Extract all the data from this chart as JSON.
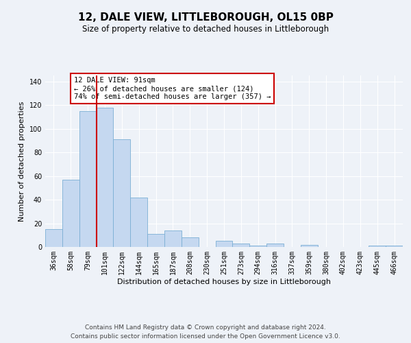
{
  "title": "12, DALE VIEW, LITTLEBOROUGH, OL15 0BP",
  "subtitle": "Size of property relative to detached houses in Littleborough",
  "xlabel": "Distribution of detached houses by size in Littleborough",
  "ylabel": "Number of detached properties",
  "categories": [
    "36sqm",
    "58sqm",
    "79sqm",
    "101sqm",
    "122sqm",
    "144sqm",
    "165sqm",
    "187sqm",
    "208sqm",
    "230sqm",
    "251sqm",
    "273sqm",
    "294sqm",
    "316sqm",
    "337sqm",
    "359sqm",
    "380sqm",
    "402sqm",
    "423sqm",
    "445sqm",
    "466sqm"
  ],
  "values": [
    15,
    57,
    115,
    118,
    91,
    42,
    11,
    14,
    8,
    0,
    5,
    3,
    1,
    3,
    0,
    2,
    0,
    0,
    0,
    1,
    1
  ],
  "bar_color": "#c5d8f0",
  "bar_edge_color": "#7bafd4",
  "vline_x_index": 3,
  "vline_color": "#cc0000",
  "annotation_box_text": "12 DALE VIEW: 91sqm\n← 26% of detached houses are smaller (124)\n74% of semi-detached houses are larger (357) →",
  "annotation_box_edge_color": "#cc0000",
  "ylim": [
    0,
    145
  ],
  "yticks": [
    0,
    20,
    40,
    60,
    80,
    100,
    120,
    140
  ],
  "footer_line1": "Contains HM Land Registry data © Crown copyright and database right 2024.",
  "footer_line2": "Contains public sector information licensed under the Open Government Licence v3.0.",
  "bg_color": "#eef2f8",
  "plot_bg_color": "#eef2f8",
  "grid_color": "#ffffff",
  "title_fontsize": 11,
  "subtitle_fontsize": 8.5,
  "xlabel_fontsize": 8,
  "ylabel_fontsize": 8,
  "tick_fontsize": 7,
  "annotation_fontsize": 7.5,
  "footer_fontsize": 6.5
}
